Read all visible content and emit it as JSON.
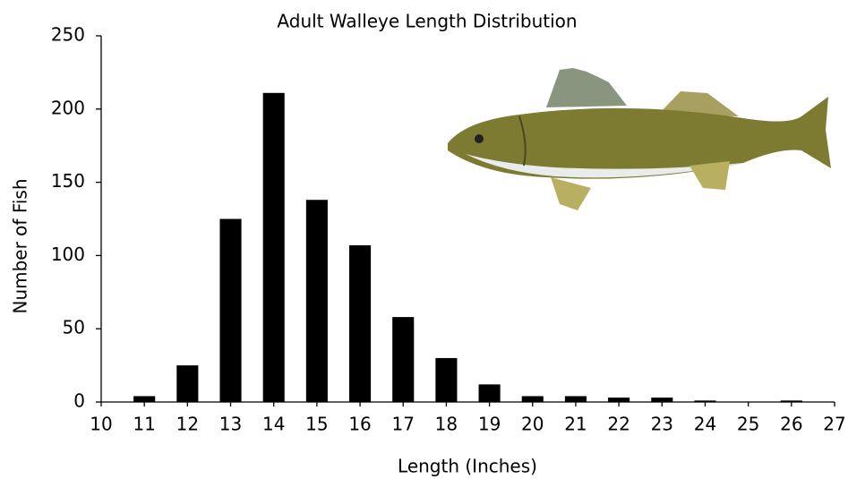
{
  "chart_data": {
    "type": "bar",
    "title": "Adult Walleye Length Distribution",
    "x_label": "Length (Inches)",
    "y_label": "Number of Fish",
    "x": [
      11,
      12,
      13,
      14,
      15,
      16,
      17,
      18,
      19,
      20,
      21,
      22,
      23,
      24,
      25,
      26
    ],
    "values": [
      4,
      25,
      125,
      211,
      138,
      107,
      58,
      30,
      12,
      4,
      4,
      3,
      3,
      1,
      0,
      1
    ],
    "color": "#000000",
    "xlim": [
      10,
      27
    ],
    "xticks": [
      10,
      11,
      12,
      13,
      14,
      15,
      16,
      17,
      18,
      19,
      20,
      21,
      22,
      23,
      24,
      25,
      26,
      27
    ],
    "ylim": [
      0,
      250
    ],
    "yticks": [
      0,
      50,
      100,
      150,
      200,
      250
    ],
    "grid": false
  }
}
